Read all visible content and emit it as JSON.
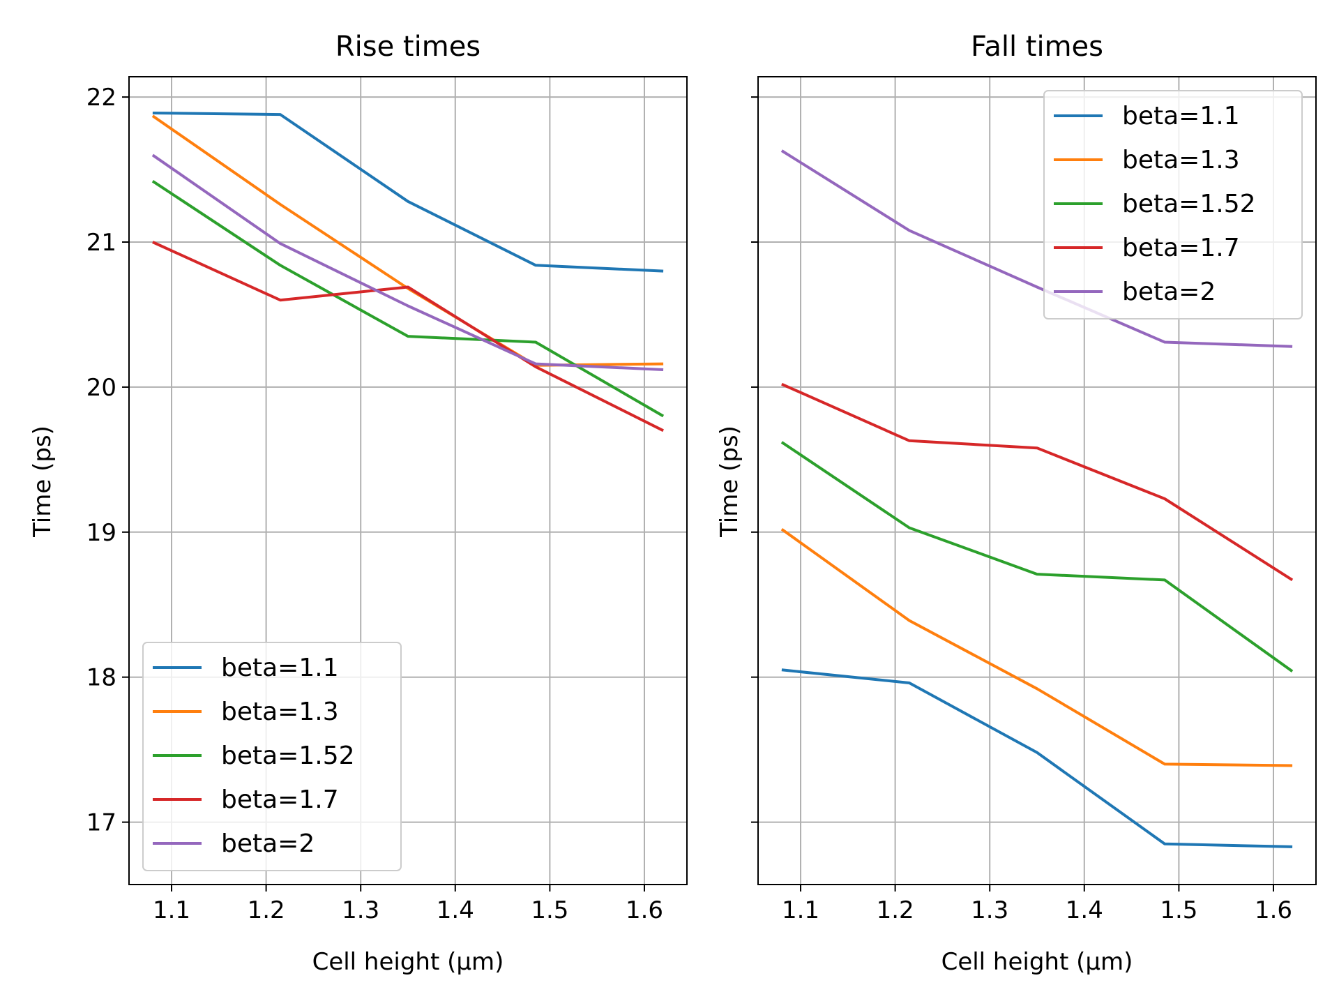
{
  "chart_data": [
    {
      "type": "line",
      "title": "Rise times",
      "xlabel": "Cell height (μm)",
      "ylabel": "Time (ps)",
      "xlim": [
        1.055,
        1.645
      ],
      "ylim": [
        16.57,
        22.14
      ],
      "xticks": [
        1.1,
        1.2,
        1.3,
        1.4,
        1.5,
        1.6
      ],
      "xtick_labels": [
        "1.1",
        "1.2",
        "1.3",
        "1.4",
        "1.5",
        "1.6"
      ],
      "yticks": [
        17,
        18,
        19,
        20,
        21,
        22
      ],
      "ytick_labels": [
        "17",
        "18",
        "19",
        "20",
        "21",
        "22"
      ],
      "grid": true,
      "legend_position": "lower-left",
      "x": [
        1.08,
        1.215,
        1.35,
        1.485,
        1.62
      ],
      "series": [
        {
          "name": "beta=1.1",
          "color": "#1f77b4",
          "values": [
            21.89,
            21.88,
            21.28,
            20.84,
            20.8
          ]
        },
        {
          "name": "beta=1.3",
          "color": "#ff7f0e",
          "values": [
            21.87,
            21.26,
            20.68,
            20.15,
            20.16
          ]
        },
        {
          "name": "beta=1.52",
          "color": "#2ca02c",
          "values": [
            21.42,
            20.84,
            20.35,
            20.31,
            19.8
          ]
        },
        {
          "name": "beta=1.7",
          "color": "#d62728",
          "values": [
            21.0,
            20.6,
            20.69,
            20.14,
            19.7
          ]
        },
        {
          "name": "beta=2",
          "color": "#9467bd",
          "values": [
            21.6,
            20.99,
            20.56,
            20.16,
            20.12
          ]
        }
      ]
    },
    {
      "type": "line",
      "title": "Fall times",
      "xlabel": "Cell height (μm)",
      "ylabel": "Time (ps)",
      "xlim": [
        1.055,
        1.645
      ],
      "ylim": [
        16.57,
        22.14
      ],
      "xticks": [
        1.1,
        1.2,
        1.3,
        1.4,
        1.5,
        1.6
      ],
      "xtick_labels": [
        "1.1",
        "1.2",
        "1.3",
        "1.4",
        "1.5",
        "1.6"
      ],
      "yticks": [
        17,
        18,
        19,
        20,
        21,
        22
      ],
      "grid": true,
      "legend_position": "upper-right",
      "x": [
        1.08,
        1.215,
        1.35,
        1.485,
        1.62
      ],
      "series": [
        {
          "name": "beta=1.1",
          "color": "#1f77b4",
          "values": [
            18.05,
            17.96,
            17.48,
            16.85,
            16.83
          ]
        },
        {
          "name": "beta=1.3",
          "color": "#ff7f0e",
          "values": [
            19.02,
            18.39,
            17.92,
            17.4,
            17.39
          ]
        },
        {
          "name": "beta=1.52",
          "color": "#2ca02c",
          "values": [
            19.62,
            19.03,
            18.71,
            18.67,
            18.04
          ]
        },
        {
          "name": "beta=1.7",
          "color": "#d62728",
          "values": [
            20.02,
            19.63,
            19.58,
            19.23,
            18.67
          ]
        },
        {
          "name": "beta=2",
          "color": "#9467bd",
          "values": [
            21.63,
            21.08,
            20.69,
            20.31,
            20.28
          ]
        }
      ]
    }
  ]
}
